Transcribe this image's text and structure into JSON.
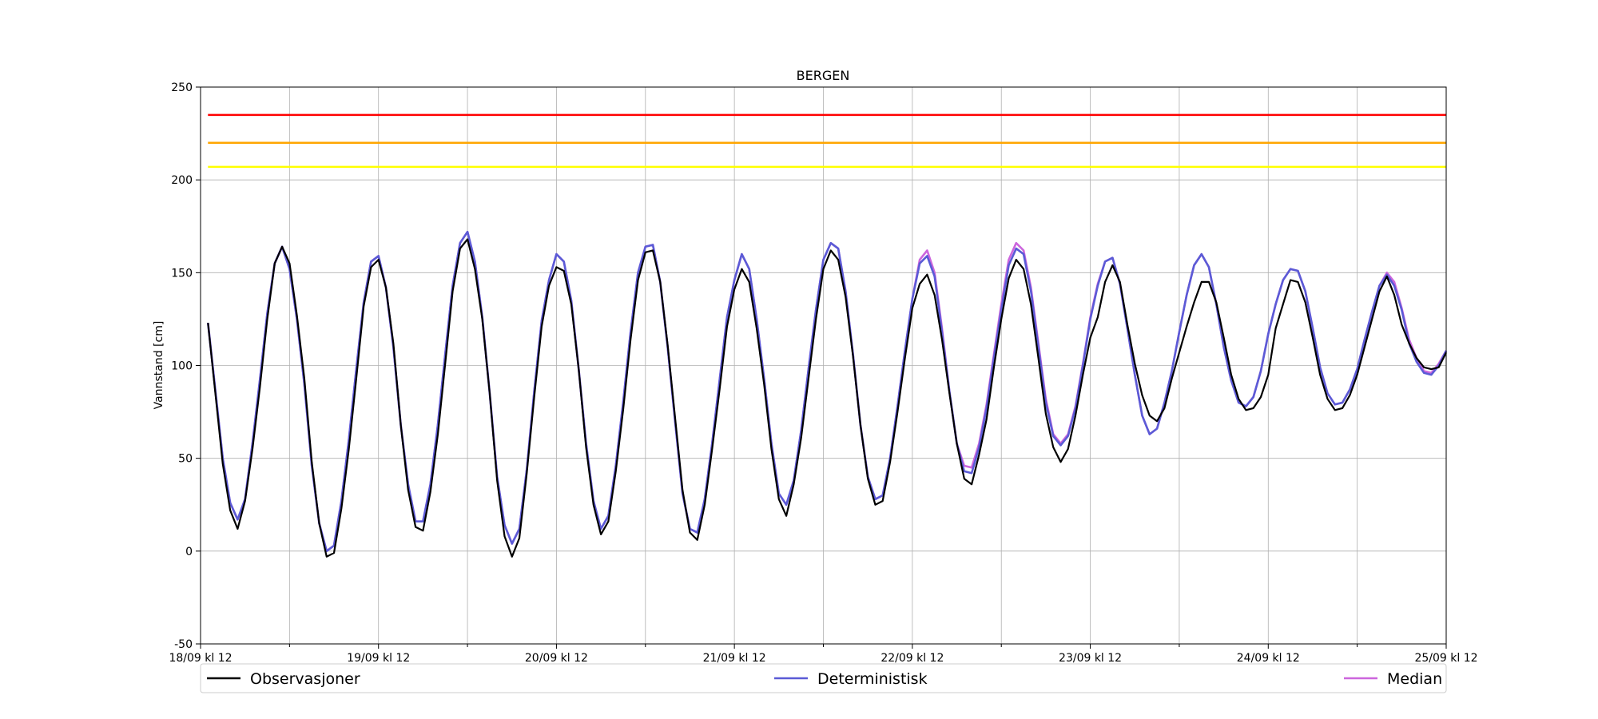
{
  "chart_data": {
    "type": "line",
    "title": "BERGEN",
    "xlabel": "",
    "ylabel": "Vannstand [cm]",
    "ylim": [
      -50,
      250
    ],
    "yticks": [
      -50,
      0,
      50,
      100,
      150,
      200,
      250
    ],
    "x_ticks": [
      0,
      24,
      48,
      72,
      96,
      120,
      144,
      168
    ],
    "x_tick_labels": [
      "18/09 kl 12",
      "19/09 kl 12",
      "20/09 kl 12",
      "21/09 kl 12",
      "22/09 kl 12",
      "23/09 kl 12",
      "24/09 kl 12",
      "25/09 kl 12"
    ],
    "x_minor_ticks": [
      12,
      36,
      60,
      84,
      108,
      132,
      156
    ],
    "xlim": [
      0,
      168
    ],
    "grid": true,
    "legend_position": "bottom",
    "thresholds": [
      {
        "value": 235,
        "color": "#ff0000"
      },
      {
        "value": 220,
        "color": "#ffa500"
      },
      {
        "value": 207,
        "color": "#ffff00"
      }
    ],
    "series": [
      {
        "name": "Observasjoner",
        "color": "#000000",
        "x": [
          1,
          3,
          4,
          5,
          6,
          7,
          8,
          9,
          10,
          11,
          12,
          13,
          14,
          15,
          16,
          17,
          18,
          19,
          20,
          21,
          22,
          23,
          24,
          25,
          26,
          27,
          28,
          29,
          30,
          31,
          32,
          33,
          34,
          35,
          36,
          37,
          38,
          39,
          40,
          41,
          42,
          43,
          44,
          45,
          46,
          47,
          48,
          49,
          50,
          51,
          52,
          53,
          54,
          55,
          56,
          57,
          58,
          59,
          60,
          61,
          62,
          63,
          64,
          65,
          66,
          67,
          68,
          69,
          70,
          71,
          72,
          73,
          74,
          75,
          76,
          77,
          78,
          79,
          80,
          81,
          82,
          83,
          84,
          85,
          86,
          87,
          88,
          89,
          90,
          91,
          92,
          93,
          94,
          95,
          96,
          97,
          98,
          99,
          100,
          101,
          102,
          103,
          104,
          105,
          106,
          107,
          108,
          109,
          110,
          111,
          112,
          113,
          114,
          115,
          116,
          117,
          118,
          119,
          120,
          121,
          122,
          123,
          124,
          125,
          126,
          127,
          128,
          129,
          130,
          131,
          132,
          133,
          134,
          135,
          136,
          137,
          138,
          139,
          140,
          141,
          142,
          143,
          144,
          145,
          146,
          147,
          148,
          149,
          150,
          151,
          152,
          153,
          154,
          155,
          156,
          157,
          158,
          159,
          160,
          161,
          162,
          163,
          164,
          165,
          166,
          167,
          168
        ],
        "y": [
          123,
          47,
          22,
          12,
          27,
          55,
          88,
          125,
          155,
          164,
          155,
          127,
          93,
          48,
          15,
          -3,
          -1,
          23,
          55,
          93,
          132,
          153,
          157,
          142,
          112,
          68,
          33,
          13,
          11,
          32,
          63,
          101,
          140,
          163,
          168,
          152,
          125,
          85,
          38,
          8,
          -3,
          7,
          42,
          83,
          121,
          143,
          153,
          151,
          133,
          98,
          56,
          25,
          9,
          16,
          43,
          76,
          114,
          146,
          161,
          162,
          145,
          111,
          72,
          33,
          10,
          6,
          25,
          55,
          87,
          121,
          141,
          152,
          145,
          120,
          90,
          55,
          28,
          19,
          36,
          61,
          93,
          125,
          152,
          162,
          157,
          137,
          105,
          68,
          39,
          25,
          27,
          48,
          75,
          104,
          131,
          144,
          149,
          138,
          114,
          85,
          58,
          39,
          36,
          52,
          71,
          99,
          125,
          147,
          157,
          152,
          133,
          104,
          74,
          56,
          48,
          55,
          73,
          95,
          115,
          126,
          145,
          154,
          145,
          122,
          101,
          84,
          73,
          70,
          77,
          93,
          107,
          121,
          134,
          145,
          145,
          134,
          115,
          95,
          82,
          76,
          77,
          83,
          95,
          120,
          133,
          146,
          145,
          134,
          115,
          95,
          82,
          76,
          77,
          84,
          95,
          110,
          125,
          140,
          148,
          138,
          122,
          112,
          104,
          99,
          98,
          99,
          107
        ]
      },
      {
        "name": "Deterministisk",
        "color": "#5b5bd6",
        "x": [
          1,
          3,
          4,
          5,
          6,
          7,
          8,
          9,
          10,
          11,
          12,
          13,
          14,
          15,
          16,
          17,
          18,
          19,
          20,
          21,
          22,
          23,
          24,
          25,
          26,
          27,
          28,
          29,
          30,
          31,
          32,
          33,
          34,
          35,
          36,
          37,
          38,
          39,
          40,
          41,
          42,
          43,
          44,
          45,
          46,
          47,
          48,
          49,
          50,
          51,
          52,
          53,
          54,
          55,
          56,
          57,
          58,
          59,
          60,
          61,
          62,
          63,
          64,
          65,
          66,
          67,
          68,
          69,
          70,
          71,
          72,
          73,
          74,
          75,
          76,
          77,
          78,
          79,
          80,
          81,
          82,
          83,
          84,
          85,
          86,
          87,
          88,
          89,
          90,
          91,
          92,
          93,
          94,
          95,
          96,
          97,
          98,
          99,
          100,
          101,
          102,
          103,
          104,
          105,
          106,
          107,
          108,
          109,
          110,
          111,
          112,
          113,
          114,
          115,
          116,
          117,
          118,
          119,
          120,
          121,
          122,
          123,
          124,
          125,
          126,
          127,
          128,
          129,
          130,
          131,
          132,
          133,
          134,
          135,
          136,
          137,
          138,
          139,
          140,
          141,
          142,
          143,
          144,
          145,
          146,
          147,
          148,
          149,
          150,
          151,
          152,
          153,
          154,
          155,
          156,
          157,
          158,
          159,
          160,
          161,
          162,
          163,
          164,
          165,
          166,
          167,
          168
        ],
        "y": [
          123,
          50,
          26,
          17,
          28,
          58,
          92,
          128,
          155,
          164,
          152,
          125,
          90,
          46,
          15,
          0,
          3,
          27,
          60,
          98,
          134,
          156,
          159,
          142,
          110,
          68,
          36,
          16,
          16,
          36,
          68,
          106,
          143,
          166,
          172,
          156,
          126,
          85,
          40,
          14,
          4,
          12,
          44,
          86,
          124,
          146,
          160,
          156,
          135,
          98,
          58,
          27,
          12,
          19,
          46,
          80,
          118,
          150,
          164,
          165,
          145,
          110,
          70,
          31,
          12,
          10,
          28,
          58,
          92,
          126,
          146,
          160,
          152,
          125,
          93,
          58,
          31,
          25,
          38,
          65,
          98,
          130,
          157,
          166,
          163,
          140,
          106,
          68,
          40,
          28,
          30,
          50,
          78,
          108,
          136,
          155,
          159,
          148,
          118,
          86,
          58,
          43,
          42,
          56,
          77,
          104,
          130,
          154,
          163,
          160,
          140,
          110,
          80,
          62,
          57,
          62,
          77,
          100,
          125,
          143,
          156,
          158,
          144,
          120,
          95,
          73,
          63,
          66,
          80,
          97,
          118,
          138,
          154,
          160,
          153,
          133,
          110,
          92,
          80,
          78,
          83,
          97,
          117,
          133,
          146,
          152,
          151,
          140,
          120,
          99,
          85,
          79,
          80,
          87,
          98,
          114,
          129,
          143,
          149,
          143,
          130,
          112,
          102,
          96,
          95,
          100,
          108
        ]
      },
      {
        "name": "Median",
        "color": "#cc66dd",
        "x": [
          1,
          3,
          4,
          5,
          6,
          7,
          8,
          9,
          10,
          11,
          12,
          13,
          14,
          15,
          16,
          17,
          18,
          19,
          20,
          21,
          22,
          23,
          24,
          25,
          26,
          27,
          28,
          29,
          30,
          31,
          32,
          33,
          34,
          35,
          36,
          37,
          38,
          39,
          40,
          41,
          42,
          43,
          44,
          45,
          46,
          47,
          48,
          49,
          50,
          51,
          52,
          53,
          54,
          55,
          56,
          57,
          58,
          59,
          60,
          61,
          62,
          63,
          64,
          65,
          66,
          67,
          68,
          69,
          70,
          71,
          72,
          73,
          74,
          75,
          76,
          77,
          78,
          79,
          80,
          81,
          82,
          83,
          84,
          85,
          86,
          87,
          88,
          89,
          90,
          91,
          92,
          93,
          94,
          95,
          96,
          97,
          98,
          99,
          100,
          101,
          102,
          103,
          104,
          105,
          106,
          107,
          108,
          109,
          110,
          111,
          112,
          113,
          114,
          115,
          116,
          117,
          118,
          119,
          120,
          121,
          122,
          123,
          124,
          125,
          126,
          127,
          128,
          129,
          130,
          131,
          132,
          133,
          134,
          135,
          136,
          137,
          138,
          139,
          140,
          141,
          142,
          143,
          144,
          145,
          146,
          147,
          148,
          149,
          150,
          151,
          152,
          153,
          154,
          155,
          156,
          157,
          158,
          159,
          160,
          161,
          162,
          163,
          164,
          165,
          166,
          167,
          168
        ],
        "y": [
          123,
          50,
          26,
          17,
          28,
          58,
          92,
          128,
          155,
          164,
          152,
          125,
          90,
          46,
          15,
          0,
          3,
          27,
          60,
          98,
          134,
          156,
          159,
          142,
          110,
          68,
          36,
          16,
          16,
          36,
          68,
          106,
          143,
          166,
          172,
          156,
          126,
          85,
          40,
          14,
          4,
          12,
          44,
          86,
          124,
          146,
          160,
          156,
          135,
          98,
          58,
          27,
          12,
          19,
          46,
          80,
          118,
          150,
          164,
          165,
          145,
          110,
          70,
          31,
          12,
          10,
          28,
          58,
          92,
          126,
          146,
          160,
          152,
          125,
          93,
          58,
          31,
          25,
          38,
          65,
          98,
          130,
          157,
          166,
          163,
          140,
          106,
          68,
          40,
          28,
          30,
          50,
          78,
          108,
          136,
          157,
          162,
          150,
          120,
          86,
          58,
          46,
          45,
          58,
          79,
          106,
          133,
          157,
          166,
          162,
          142,
          112,
          82,
          63,
          58,
          63,
          78,
          101,
          126,
          144,
          156,
          158,
          144,
          120,
          95,
          73,
          63,
          66,
          80,
          97,
          118,
          138,
          154,
          160,
          153,
          133,
          110,
          92,
          80,
          78,
          83,
          97,
          117,
          133,
          146,
          152,
          151,
          140,
          120,
          99,
          85,
          79,
          80,
          87,
          98,
          114,
          129,
          143,
          150,
          145,
          131,
          114,
          104,
          97,
          96,
          101,
          108
        ]
      }
    ]
  }
}
